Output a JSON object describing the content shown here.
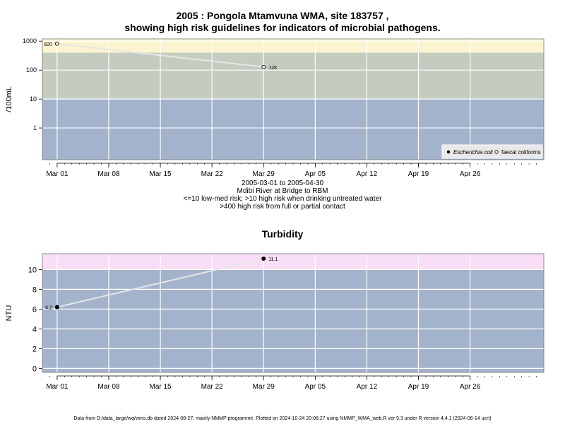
{
  "chart_data": [
    {
      "type": "scatter",
      "title": "2005 : Pongola Mtamvuna WMA, site 183757 ,",
      "subtitle": "showing high risk guidelines for indicators of microbial pathogens.",
      "ylabel": "/100mL",
      "yscale": "log",
      "ylim": [
        0.08,
        1200
      ],
      "yticks": [
        1,
        10,
        100,
        1000
      ],
      "yticklabels": [
        "1",
        "10",
        "100",
        "1000"
      ],
      "x_start": "2005-02-27",
      "x_end": "2005-05-06",
      "xticks": [
        "2005-03-01",
        "2005-03-08",
        "2005-03-15",
        "2005-03-22",
        "2005-03-29",
        "2005-04-05",
        "2005-04-12",
        "2005-04-19",
        "2005-04-26"
      ],
      "xticklabels": [
        "Mar 01",
        "Mar 08",
        "Mar 15",
        "Mar 22",
        "Mar 29",
        "Apr 05",
        "Apr 12",
        "Apr 19",
        "Apr 26"
      ],
      "bands": [
        {
          "from": 0.08,
          "to": 10,
          "color": "#a3b3cc"
        },
        {
          "from": 10,
          "to": 400,
          "color": "#c4ccc0"
        },
        {
          "from": 400,
          "to": 1200,
          "color": "#fbf4cf"
        }
      ],
      "series": [
        {
          "name": "faecal coliforms",
          "marker": "open-circle",
          "points": [
            {
              "x": "2005-03-01",
              "y": 820,
              "label": "820"
            },
            {
              "x": "2005-03-29",
              "y": 128,
              "label": "128"
            }
          ]
        }
      ],
      "legend": {
        "placement": "bottom-right",
        "entries": [
          "Escherichia coli",
          "faecal coliforms"
        ]
      },
      "grid": true,
      "notes": [
        "2005-03-01 to 2005-04-30",
        "Mdibi River at Bridge to RBM",
        "<=10 low-med risk; >10 high risk when drinking untreated water",
        ">400 high risk from full or partial contact"
      ]
    },
    {
      "type": "scatter",
      "title": "Turbidity",
      "ylabel": "NTU",
      "yscale": "linear",
      "ylim": [
        -0.4,
        11.6
      ],
      "yticks": [
        0,
        2,
        4,
        6,
        8,
        10
      ],
      "yticklabels": [
        "0",
        "2",
        "4",
        "6",
        "8",
        "10"
      ],
      "x_start": "2005-02-27",
      "x_end": "2005-05-06",
      "xticks": [
        "2005-03-01",
        "2005-03-08",
        "2005-03-15",
        "2005-03-22",
        "2005-03-29",
        "2005-04-05",
        "2005-04-12",
        "2005-04-19",
        "2005-04-26"
      ],
      "xticklabels": [
        "Mar 01",
        "Mar 08",
        "Mar 15",
        "Mar 22",
        "Mar 29",
        "Apr 05",
        "Apr 12",
        "Apr 19",
        "Apr 26"
      ],
      "bands": [
        {
          "from": -0.4,
          "to": 10,
          "color": "#a3b3cc"
        },
        {
          "from": 10,
          "to": 11.6,
          "color": "#f9def7"
        }
      ],
      "series": [
        {
          "name": "",
          "marker": "filled-circle",
          "points": [
            {
              "x": "2005-03-01",
              "y": 6.2,
              "label": "6.2"
            },
            {
              "x": "2005-03-29",
              "y": 11.1,
              "label": "11.1"
            }
          ]
        }
      ],
      "grid": true
    }
  ],
  "footer": "Data from D:/data_large/wq/wms.db dated 2024-08-27, mainly NMMP programme. Plotted on 2024-10-24 20:06:27 using NMMP_WMA_web.R ver 9.3 under R version 4.4.1 (2024-06-14 ucrt)"
}
